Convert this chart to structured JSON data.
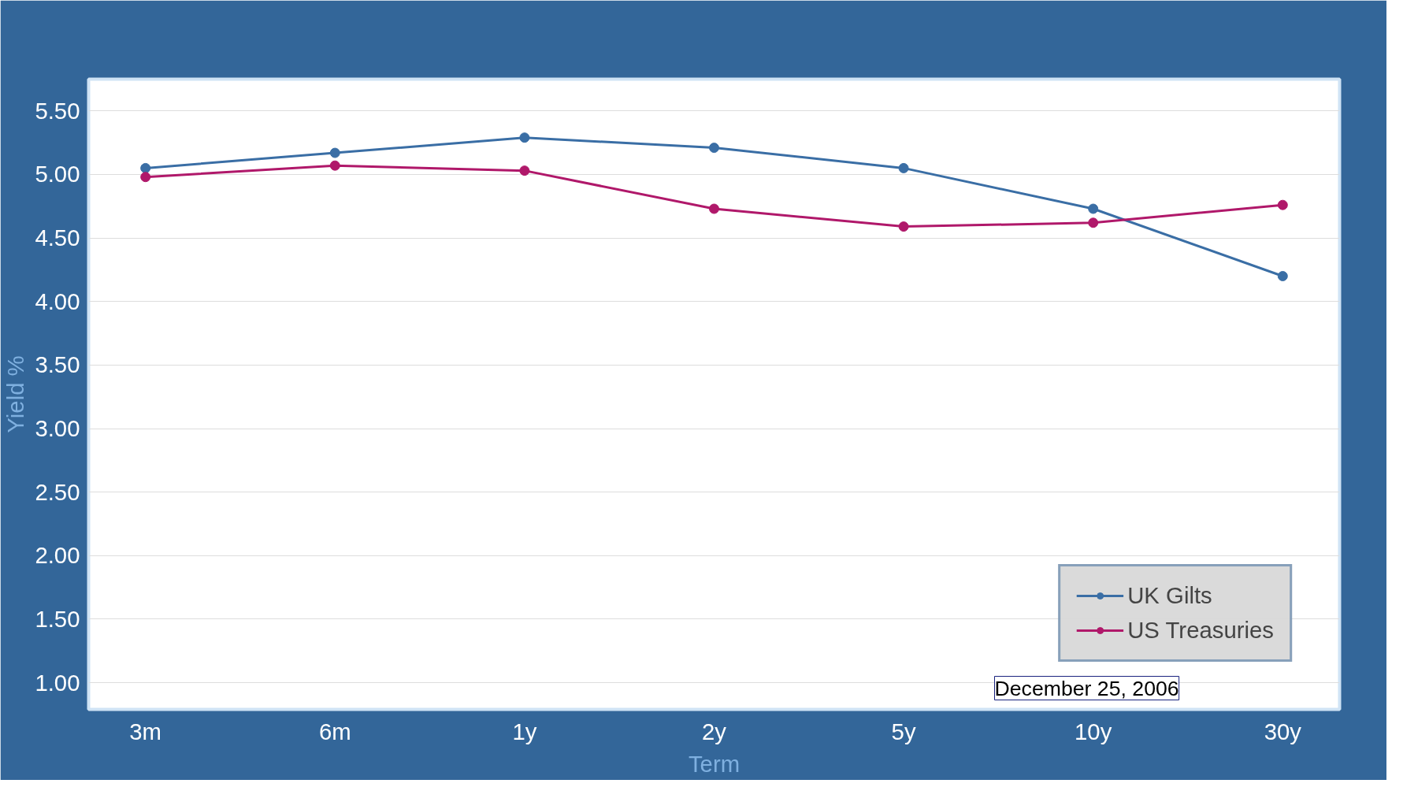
{
  "chart_data": {
    "type": "line",
    "xlabel": "Term",
    "ylabel": "Yield %",
    "categories": [
      "3m",
      "6m",
      "1y",
      "2y",
      "5y",
      "10y",
      "30y"
    ],
    "series": [
      {
        "name": "UK Gilts",
        "color": "#3a6ea5",
        "values": [
          5.05,
          5.17,
          5.29,
          5.21,
          5.05,
          4.73,
          4.2
        ]
      },
      {
        "name": "US Treasuries",
        "color": "#b0186a",
        "values": [
          4.98,
          5.07,
          5.03,
          4.73,
          4.59,
          4.62,
          4.76
        ]
      }
    ],
    "ylim": [
      0.79,
      5.75
    ],
    "yticks": [
      {
        "value": 1,
        "label": "1.00"
      },
      {
        "value": 1.5,
        "label": "1.50"
      },
      {
        "value": 2,
        "label": "2.00"
      },
      {
        "value": 2.5,
        "label": "2.50"
      },
      {
        "value": 3,
        "label": "3.00"
      },
      {
        "value": 3.5,
        "label": "3.50"
      },
      {
        "value": 4,
        "label": "4.00"
      },
      {
        "value": 4.5,
        "label": "4.50"
      },
      {
        "value": 5,
        "label": "5.00"
      },
      {
        "value": 5.5,
        "label": "5.50"
      }
    ],
    "grid": "y",
    "legend": "bottom right",
    "marker": "circle",
    "line_style": "solid",
    "annotations": [
      "December 25, 2006"
    ]
  }
}
